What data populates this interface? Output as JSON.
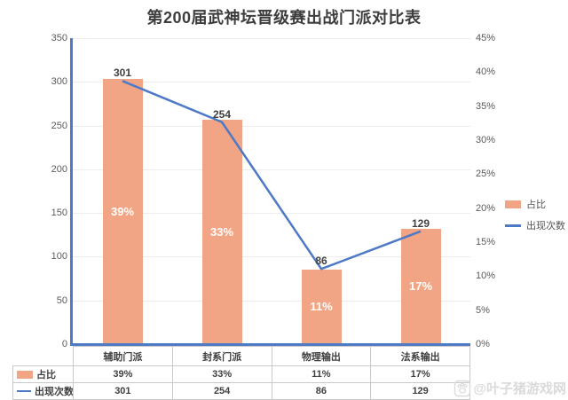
{
  "title": "第200届武神坛晋级赛出战门派对比表",
  "colors": {
    "bar": "#F2A584",
    "line": "#4E79C6",
    "axis": "#4E79C6",
    "grid": "#EDEDED",
    "table_border": "#C9C9C9",
    "bar_label": "#FFFFFF",
    "point_label": "#3F3F3F",
    "axis_text": "#5A5A5A",
    "watermark": "#DADADA"
  },
  "legend": {
    "items": [
      {
        "label": "占比",
        "swatch": "bar-swatch"
      },
      {
        "label": "出现次数",
        "swatch": "line-swatch"
      }
    ]
  },
  "watermark": {
    "icon": "paw-icon",
    "text": "@叶子猪游戏网"
  },
  "chart_data": {
    "type": "bar",
    "title": "第200届武神坛晋级赛出战门派对比表",
    "categories": [
      "辅助门派",
      "封系门派",
      "物理输出",
      "法系输出"
    ],
    "series": [
      {
        "name": "占比",
        "type": "bar",
        "axis": "right",
        "values": [
          39,
          33,
          11,
          17
        ],
        "labels": [
          "39%",
          "33%",
          "11%",
          "17%"
        ]
      },
      {
        "name": "出现次数",
        "type": "line",
        "axis": "left",
        "values": [
          301,
          254,
          86,
          129
        ],
        "labels": [
          "301",
          "254",
          "86",
          "129"
        ]
      }
    ],
    "left_axis": {
      "min": 0,
      "max": 350,
      "step": 50,
      "ticks": [
        "0",
        "50",
        "100",
        "150",
        "200",
        "250",
        "300",
        "350"
      ]
    },
    "right_axis": {
      "min": 0,
      "max": 45,
      "step": 5,
      "ticks": [
        "0%",
        "5%",
        "10%",
        "15%",
        "20%",
        "25%",
        "30%",
        "35%",
        "40%",
        "45%"
      ]
    },
    "grid": true,
    "legend_position": "right",
    "data_table_shown": true
  }
}
